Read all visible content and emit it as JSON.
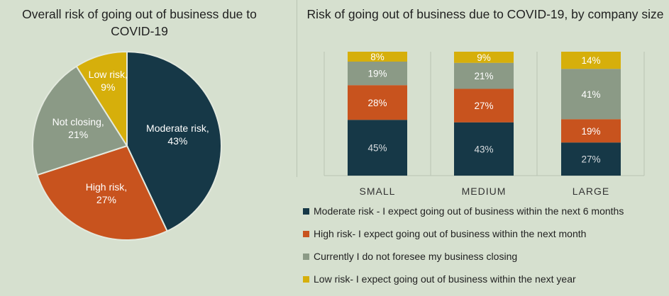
{
  "chart_data": [
    {
      "type": "pie",
      "title": "Overall risk of going out of business due to COVID-19",
      "slices": [
        {
          "label": "Moderate risk",
          "pct_label": "43%",
          "value": 43,
          "color": "#163847",
          "text_color": "#ffffff"
        },
        {
          "label": "High risk",
          "pct_label": "27%",
          "value": 27,
          "color": "#c8531e",
          "text_color": "#ffffff"
        },
        {
          "label": "Not closing",
          "pct_label": "21%",
          "value": 21,
          "color": "#8b9a86",
          "text_color": "#ffffff"
        },
        {
          "label": "Low risk",
          "pct_label": "9%",
          "value": 9,
          "color": "#d6af0b",
          "text_color": "#ffffff"
        }
      ]
    },
    {
      "type": "bar",
      "stacked": true,
      "title": "Risk of going out of business due to COVID-19, by company size",
      "categories": [
        "SMALL",
        "MEDIUM",
        "LARGE"
      ],
      "series": [
        {
          "name": "Moderate risk - I expect going out of business within the next 6 months",
          "color": "#163847",
          "text_color": "#d9dde0",
          "values": [
            45,
            43,
            27
          ],
          "labels": [
            "45%",
            "43%",
            "27%"
          ]
        },
        {
          "name": "High risk- I expect going out of business within the next month",
          "color": "#c8531e",
          "text_color": "#ffffff",
          "values": [
            28,
            27,
            19
          ],
          "labels": [
            "28%",
            "27%",
            "19%"
          ]
        },
        {
          "name": "Currently I do not foresee my business closing",
          "color": "#8b9a86",
          "text_color": "#ffffff",
          "values": [
            19,
            21,
            41
          ],
          "labels": [
            "19%",
            "21%",
            "41%"
          ]
        },
        {
          "name": "Low risk- I expect going out of business within the next year",
          "color": "#d6af0b",
          "text_color": "#ffffff",
          "values": [
            8,
            9,
            14
          ],
          "labels": [
            "8%",
            "9%",
            "14%"
          ]
        }
      ],
      "legend_position": "bottom",
      "grid": false
    }
  ]
}
